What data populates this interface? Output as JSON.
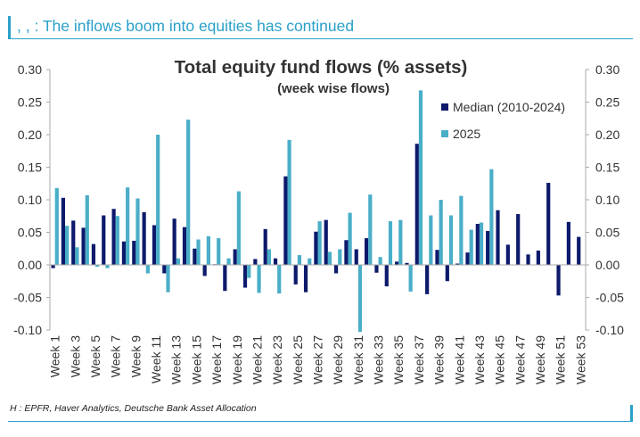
{
  "header": {
    "text": ",         , : The inflows boom into equities has continued"
  },
  "footer": {
    "source": "H        : EPFR, Haver Analytics, Deutsche Bank Asset Allocation"
  },
  "colors": {
    "accent": "#2aa0c8",
    "median": "#0d1a6b",
    "y2025": "#4aaec8"
  },
  "chart_data": {
    "type": "bar",
    "title": "Total equity fund flows (% assets)",
    "subtitle": "(week wise flows)",
    "xlabel": "",
    "ylabel": "",
    "ylim": [
      -0.1,
      0.3
    ],
    "y_ticks": [
      "0.30",
      "0.25",
      "0.20",
      "0.15",
      "0.10",
      "0.05",
      "0.00",
      "-0.05",
      "-0.10"
    ],
    "legend_position": "top-right",
    "categories": [
      "Week 1",
      "Week 2",
      "Week 3",
      "Week 4",
      "Week 5",
      "Week 6",
      "Week 7",
      "Week 8",
      "Week 9",
      "Week 10",
      "Week 11",
      "Week 12",
      "Week 13",
      "Week 14",
      "Week 15",
      "Week 16",
      "Week 17",
      "Week 18",
      "Week 19",
      "Week 20",
      "Week 21",
      "Week 22",
      "Week 23",
      "Week 24",
      "Week 25",
      "Week 26",
      "Week 27",
      "Week 28",
      "Week 29",
      "Week 30",
      "Week 31",
      "Week 32",
      "Week 33",
      "Week 34",
      "Week 35",
      "Week 36",
      "Week 37",
      "Week 38",
      "Week 39",
      "Week 40",
      "Week 41",
      "Week 42",
      "Week 43",
      "Week 44",
      "Week 45",
      "Week 46",
      "Week 47",
      "Week 48",
      "Week 49",
      "Week 50",
      "Week 51",
      "Week 52",
      "Week 53"
    ],
    "x_tick_labels": [
      "Week 1",
      "Week 3",
      "Week 5",
      "Week 7",
      "Week 9",
      "Week 11",
      "Week 13",
      "Week 15",
      "Week 17",
      "Week 19",
      "Week 21",
      "Week 23",
      "Week 25",
      "Week 27",
      "Week 29",
      "Week 31",
      "Week 33",
      "Week 35",
      "Week 37",
      "Week 39",
      "Week 41",
      "Week 43",
      "Week 45",
      "Week 47",
      "Week 49",
      "Week 51",
      "Week 53"
    ],
    "series": [
      {
        "name": "Median (2010-2024)",
        "values": [
          -0.005,
          0.103,
          0.068,
          0.057,
          0.032,
          0.076,
          0.086,
          0.036,
          0.037,
          0.081,
          0.061,
          -0.013,
          0.071,
          0.058,
          0.025,
          -0.017,
          0.001,
          -0.04,
          0.024,
          -0.035,
          0.009,
          0.055,
          0.01,
          0.136,
          -0.03,
          -0.042,
          0.051,
          0.069,
          -0.013,
          0.038,
          0.024,
          0.041,
          -0.012,
          -0.033,
          0.005,
          0.003,
          0.186,
          -0.045,
          0.023,
          -0.025,
          0.002,
          0.019,
          0.063,
          0.052,
          0.084,
          0.031,
          0.078,
          0.016,
          0.022,
          0.126,
          -0.047,
          0.066,
          0.043
        ]
      },
      {
        "name": "2025",
        "values": [
          0.118,
          0.06,
          0.027,
          0.107,
          -0.003,
          -0.005,
          0.075,
          0.119,
          0.102,
          -0.013,
          0.2,
          -0.042,
          0.01,
          0.223,
          0.039,
          0.044,
          0.041,
          0.01,
          0.113,
          -0.02,
          -0.043,
          0.024,
          -0.044,
          0.192,
          0.015,
          0.01,
          0.067,
          0.02,
          0.024,
          0.08,
          -0.103,
          0.108,
          0.012,
          0.067,
          0.069,
          -0.041,
          0.268,
          0.076,
          0.1,
          0.076,
          0.106,
          0.054,
          0.065,
          0.147,
          0.0,
          0.0,
          0.0,
          0.0,
          0.0,
          0.0,
          0.0,
          0.0,
          0.0
        ]
      }
    ]
  }
}
